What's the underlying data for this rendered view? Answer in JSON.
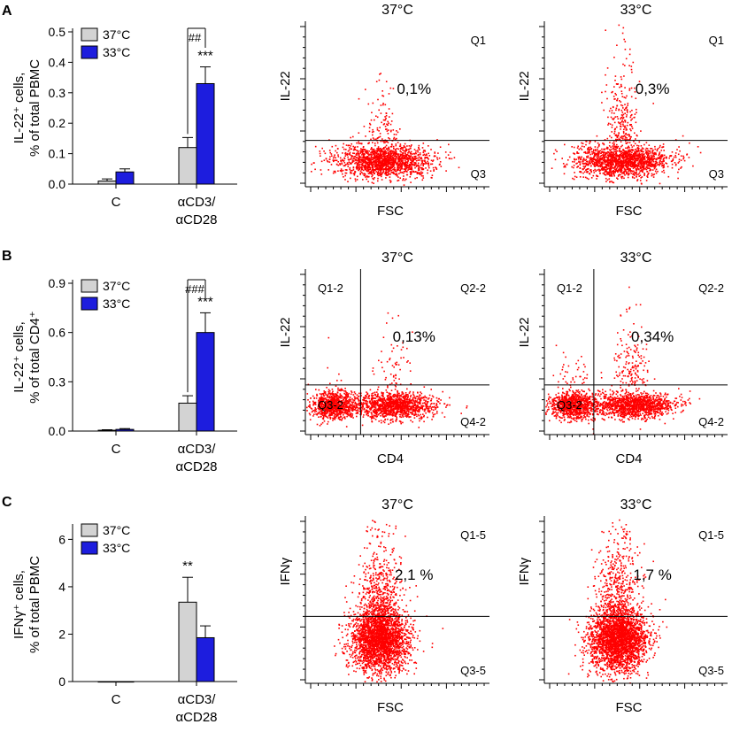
{
  "colors": {
    "bar_37": "#d3d3d3",
    "bar_33": "#1d1dde",
    "dots": "#ff0000",
    "axis": "#000000"
  },
  "panels": [
    {
      "label": "A",
      "chart_data": {
        "type": "bar",
        "title": "",
        "ylabel_line1": "IL-22⁺ cells,",
        "ylabel_line2": "% of total PBMC",
        "ylim": [
          0,
          0.5
        ],
        "yticks": [
          "0.0",
          "0.1",
          "0.2",
          "0.3",
          "0.4",
          "0.5"
        ],
        "ytick_values": [
          0,
          0.1,
          0.2,
          0.3,
          0.4,
          0.5
        ],
        "categories": [
          "C",
          "αCD3/\nαCD28"
        ],
        "category_lines": [
          [
            "C"
          ],
          [
            "αCD3/",
            "αCD28"
          ]
        ],
        "series": [
          {
            "name": "37°C",
            "values": [
              0.01,
              0.12
            ],
            "errors": [
              0.007,
              0.033
            ]
          },
          {
            "name": "33°C",
            "values": [
              0.04,
              0.33
            ],
            "errors": [
              0.01,
              0.055
            ]
          }
        ],
        "annotations": {
          "bracket": "##",
          "star": "***",
          "star_series": 1,
          "star_category": 1
        }
      },
      "plots": [
        {
          "title": "37°C",
          "xlabel": "FSC",
          "ylabel": "IL-22",
          "quadrants": {
            "upper_right": "Q1",
            "lower_right": "Q3"
          },
          "percent": "0,1%"
        },
        {
          "title": "33°C",
          "xlabel": "FSC",
          "ylabel": "IL-22",
          "quadrants": {
            "upper_right": "Q1",
            "lower_right": "Q3"
          },
          "percent": "0,3%"
        }
      ]
    },
    {
      "label": "B",
      "chart_data": {
        "type": "bar",
        "title": "",
        "ylabel_line1": "IL-22⁺ cells,",
        "ylabel_line2": "% of total CD4⁺",
        "ylim": [
          0,
          0.9
        ],
        "yticks": [
          "0.0",
          "0.3",
          "0.6",
          "0.9"
        ],
        "ytick_values": [
          0,
          0.3,
          0.6,
          0.9
        ],
        "categories": [
          "C",
          "αCD3/\nαCD28"
        ],
        "category_lines": [
          [
            "C"
          ],
          [
            "αCD3/",
            "αCD28"
          ]
        ],
        "series": [
          {
            "name": "37°C",
            "values": [
              0.005,
              0.17
            ],
            "errors": [
              0.003,
              0.045
            ]
          },
          {
            "name": "33°C",
            "values": [
              0.01,
              0.6
            ],
            "errors": [
              0.005,
              0.12
            ]
          }
        ],
        "annotations": {
          "bracket": "###",
          "star": "***",
          "star_series": 1,
          "star_category": 1
        }
      },
      "plots": [
        {
          "title": "37°C",
          "xlabel": "CD4",
          "ylabel": "IL-22",
          "quadrants": {
            "upper_left": "Q1-2",
            "upper_right": "Q2-2",
            "lower_left": "Q3-2",
            "lower_right": "Q4-2"
          },
          "percent": "0,13%"
        },
        {
          "title": "33°C",
          "xlabel": "CD4",
          "ylabel": "IL-22",
          "quadrants": {
            "upper_left": "Q1-2",
            "upper_right": "Q2-2",
            "lower_left": "Q3-2",
            "lower_right": "Q4-2"
          },
          "percent": "0,34%"
        }
      ]
    },
    {
      "label": "C",
      "chart_data": {
        "type": "bar",
        "title": "",
        "ylabel_line1": "IFNγ⁺ cells,",
        "ylabel_line2": "% of total PBMC",
        "ylim": [
          0,
          6.5
        ],
        "yticks": [
          "0",
          "2",
          "4",
          "6"
        ],
        "ytick_values": [
          0,
          2,
          4,
          6
        ],
        "categories": [
          "C",
          "αCD3/\nαCD28"
        ],
        "category_lines": [
          [
            "C"
          ],
          [
            "αCD3/",
            "αCD28"
          ]
        ],
        "series": [
          {
            "name": "37°C",
            "values": [
              0,
              3.35
            ],
            "errors": [
              0,
              1.05
            ]
          },
          {
            "name": "33°C",
            "values": [
              0,
              1.85
            ],
            "errors": [
              0,
              0.5
            ]
          }
        ],
        "annotations": {
          "bracket": "",
          "star": "**",
          "star_series": 0,
          "star_category": 1
        }
      },
      "plots": [
        {
          "title": "37°C",
          "xlabel": "FSC",
          "ylabel": "IFNγ",
          "quadrants": {
            "upper_right": "Q1-5",
            "lower_right": "Q3-5"
          },
          "percent": "2,1 %"
        },
        {
          "title": "33°C",
          "xlabel": "FSC",
          "ylabel": "IFNγ",
          "quadrants": {
            "upper_right": "Q1-5",
            "lower_right": "Q3-5"
          },
          "percent": "1,7 %"
        }
      ]
    }
  ]
}
